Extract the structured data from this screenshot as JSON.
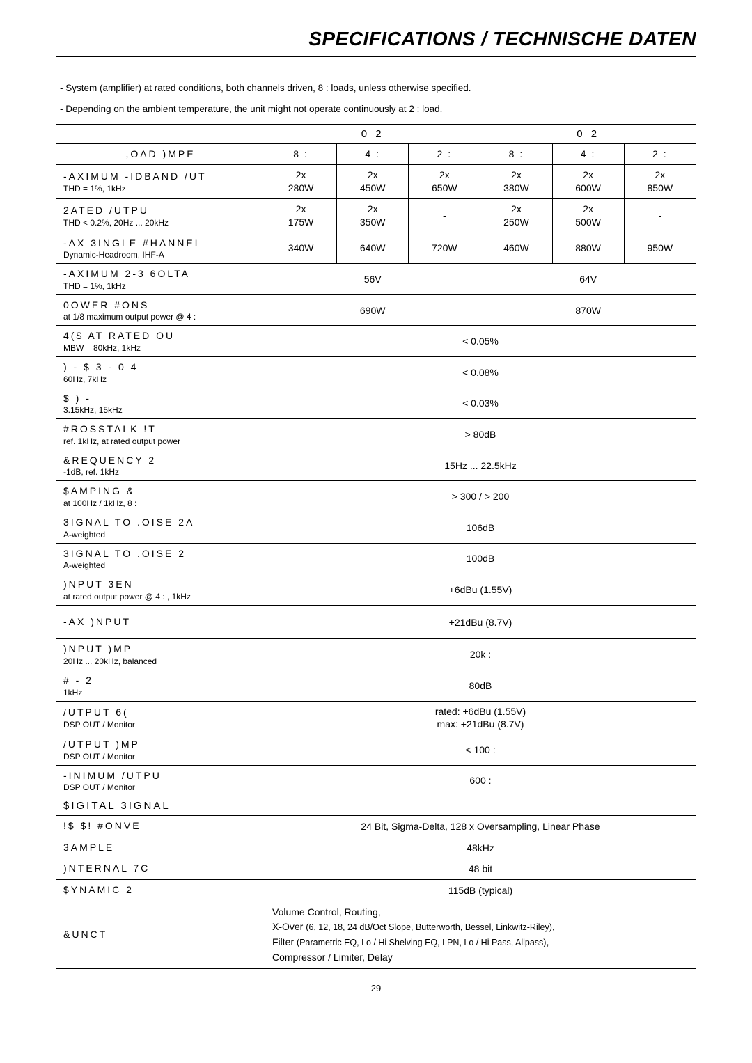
{
  "title": "SPECIFICATIONS / TECHNISCHE DATEN",
  "notes": [
    "- System (amplifier) at rated conditions, both channels driven, 8 :  loads, unless otherwise specified.",
    "- Depending on the ambient temperature, the unit might not operate continuously at 2 :  load."
  ],
  "model_headers": [
    "0     2",
    "0     2"
  ],
  "load_labels": [
    "8 :",
    "4 :",
    "2 :",
    "8 :",
    "4 :",
    "2 :"
  ],
  "rows6": [
    {
      "label": "-AXIMUM -IDBAND /UT",
      "sub": "THD = 1%, 1kHz",
      "v": [
        "2x\n280W",
        "2x\n450W",
        "2x\n650W",
        "2x\n380W",
        "2x\n600W",
        "2x\n850W"
      ]
    },
    {
      "label": "2ATED /UTPU",
      "sub": "THD < 0.2%, 20Hz ... 20kHz",
      "v": [
        "2x\n175W",
        "2x\n350W",
        "-",
        "2x\n250W",
        "2x\n500W",
        "-"
      ]
    },
    {
      "label": "-AX  3INGLE #HANNEL",
      "sub": "Dynamic-Headroom, IHF-A",
      "v": [
        "340W",
        "640W",
        "720W",
        "460W",
        "880W",
        "950W"
      ]
    }
  ],
  "rows2": [
    {
      "label": "-AXIMUM  2-3 6OLTA",
      "sub": "THD = 1%, 1kHz",
      "v": [
        "56V",
        "64V"
      ]
    },
    {
      "label": "0OWER #ONS",
      "sub": "at 1/8 maximum output power @ 4 :",
      "v": [
        "690W",
        "870W"
      ]
    }
  ],
  "rows1": [
    {
      "label": "4($ AT RATED OU",
      "sub": "MBW = 80kHz, 1kHz",
      "v": "< 0.05%"
    },
    {
      "label": ") - $  3 - 0 4",
      "sub": "60Hz, 7kHz",
      "v": "< 0.08%"
    },
    {
      "label": "$ ) -",
      "sub": "3.15kHz, 15kHz",
      "v": "< 0.03%"
    },
    {
      "label": "#ROSSTALK !T",
      "sub": "ref. 1kHz, at rated output power",
      "v": "> 80dB"
    },
    {
      "label": "&REQUENCY 2",
      "sub": "-1dB, ref. 1kHz",
      "v": "15Hz ... 22.5kHz"
    },
    {
      "label": "$AMPING &",
      "sub": "at 100Hz / 1kHz, 8 :",
      "v": ">  300 / > 200"
    },
    {
      "label": "3IGNAL TO .OISE 2A",
      "sub": "A-weighted",
      "v": "106dB"
    },
    {
      "label": "3IGNAL TO .OISE 2",
      "sub": "A-weighted",
      "v": "100dB"
    },
    {
      "label": ")NPUT 3EN",
      "sub": "at rated output power @ 4 : , 1kHz",
      "v": "+6dBu (1.55V)"
    },
    {
      "label": "-AX  )NPUT",
      "sub": "",
      "v": "+21dBu (8.7V)"
    },
    {
      "label": ")NPUT )MP",
      "sub": "20Hz ... 20kHz, balanced",
      "v": "20k :"
    },
    {
      "label": "# - 2",
      "sub": "1kHz",
      "v": "80dB"
    },
    {
      "label": "/UTPUT 6(",
      "sub": "DSP OUT / Monitor",
      "v": "rated: +6dBu (1.55V)\nmax: +21dBu (8.7V)"
    },
    {
      "label": "/UTPUT )MP",
      "sub": "DSP OUT / Monitor",
      "v": "< 100 :"
    },
    {
      "label": "-INIMUM /UTPU",
      "sub": "DSP OUT / Monitor",
      "v": "600 :"
    }
  ],
  "dsp_header": "$IGITAL 3IGNAL",
  "dsp_rows": [
    {
      "label": "!$     $! #ONVE",
      "v": "24 Bit, Sigma-Delta, 128 x Oversampling, Linear Phase"
    },
    {
      "label": "3AMPLE",
      "v": "48kHz"
    },
    {
      "label": ")NTERNAL 7C",
      "v": "48 bit"
    },
    {
      "label": "$YNAMIC 2",
      "v": "115dB (typical)"
    }
  ],
  "func": {
    "label": "&UNCT",
    "lines": {
      "a": "Volume Control, Routing,",
      "b1": "X-Over ",
      "b2": "(6, 12, 18, 24 dB/Oct Slope, Butterworth, Bessel, Linkwitz-Riley)",
      "b3": ",",
      "c1": "Filter ",
      "c2": "(Parametric EQ, Lo / Hi Shelving EQ, LPN, Lo / Hi Pass, Allpass)",
      "c3": ",",
      "d": "Compressor / Limiter, Delay"
    }
  },
  "page": "29"
}
